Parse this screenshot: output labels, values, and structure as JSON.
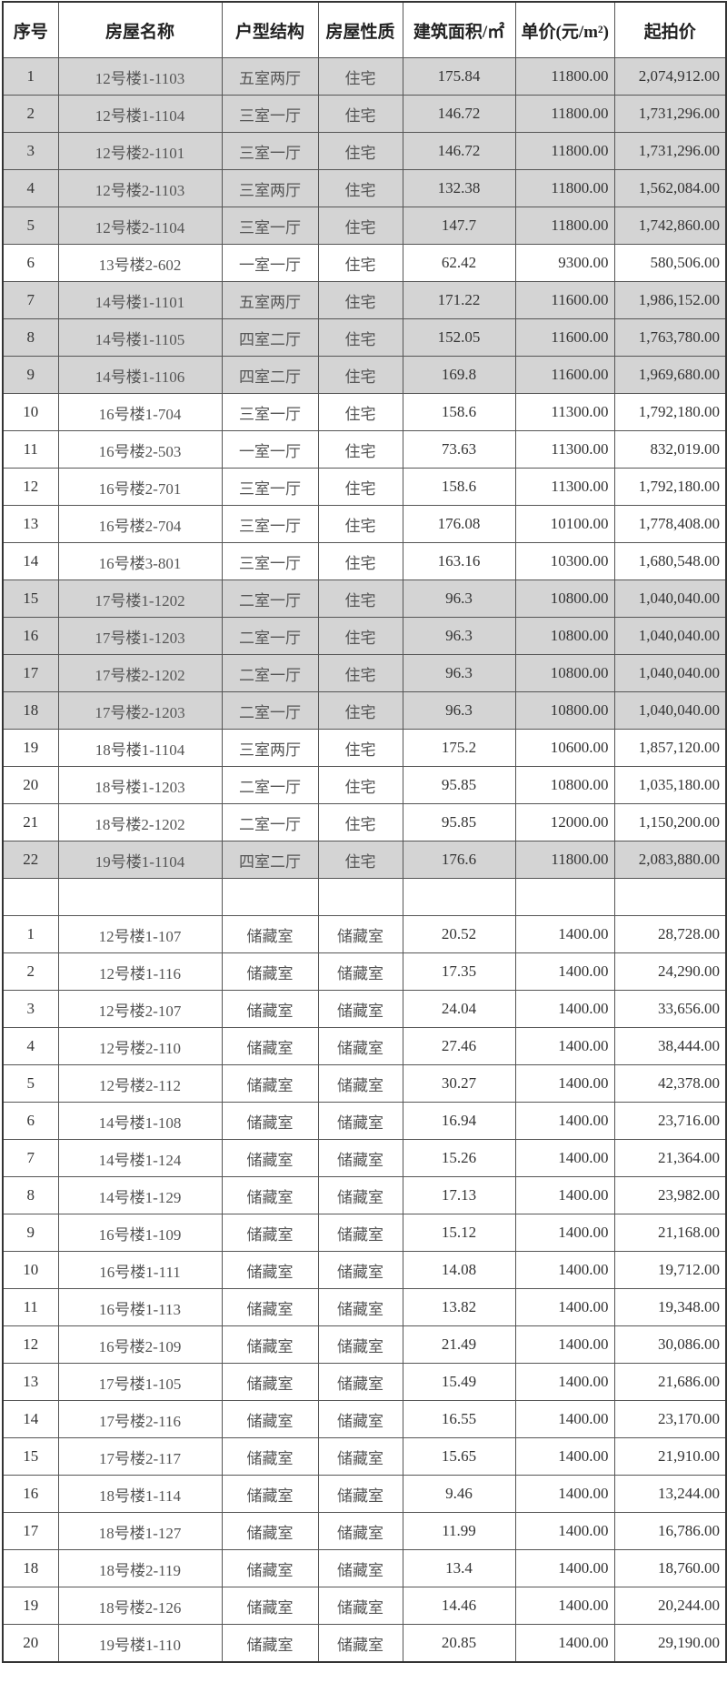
{
  "header": [
    "序号",
    "房屋名称",
    "户型结构",
    "房屋性质",
    "建筑面积/㎡",
    "单价(元/m²)",
    "起拍价"
  ],
  "colors": {
    "highlight_row": "#d4d4d4",
    "border": "#555555"
  },
  "residential": [
    {
      "no": "1",
      "name": "12号楼1-1103",
      "layout": "五室两厅",
      "nature": "住宅",
      "area": "175.84",
      "unit_price": "11800.00",
      "start_price": "2,074,912.00",
      "highlighted": true
    },
    {
      "no": "2",
      "name": "12号楼1-1104",
      "layout": "三室一厅",
      "nature": "住宅",
      "area": "146.72",
      "unit_price": "11800.00",
      "start_price": "1,731,296.00",
      "highlighted": true
    },
    {
      "no": "3",
      "name": "12号楼2-1101",
      "layout": "三室一厅",
      "nature": "住宅",
      "area": "146.72",
      "unit_price": "11800.00",
      "start_price": "1,731,296.00",
      "highlighted": true
    },
    {
      "no": "4",
      "name": "12号楼2-1103",
      "layout": "三室两厅",
      "nature": "住宅",
      "area": "132.38",
      "unit_price": "11800.00",
      "start_price": "1,562,084.00",
      "highlighted": true
    },
    {
      "no": "5",
      "name": "12号楼2-1104",
      "layout": "三室一厅",
      "nature": "住宅",
      "area": "147.7",
      "unit_price": "11800.00",
      "start_price": "1,742,860.00",
      "highlighted": true
    },
    {
      "no": "6",
      "name": "13号楼2-602",
      "layout": "一室一厅",
      "nature": "住宅",
      "area": "62.42",
      "unit_price": "9300.00",
      "start_price": "580,506.00",
      "highlighted": false
    },
    {
      "no": "7",
      "name": "14号楼1-1101",
      "layout": "五室两厅",
      "nature": "住宅",
      "area": "171.22",
      "unit_price": "11600.00",
      "start_price": "1,986,152.00",
      "highlighted": true
    },
    {
      "no": "8",
      "name": "14号楼1-1105",
      "layout": "四室二厅",
      "nature": "住宅",
      "area": "152.05",
      "unit_price": "11600.00",
      "start_price": "1,763,780.00",
      "highlighted": true
    },
    {
      "no": "9",
      "name": "14号楼1-1106",
      "layout": "四室二厅",
      "nature": "住宅",
      "area": "169.8",
      "unit_price": "11600.00",
      "start_price": "1,969,680.00",
      "highlighted": true
    },
    {
      "no": "10",
      "name": "16号楼1-704",
      "layout": "三室一厅",
      "nature": "住宅",
      "area": "158.6",
      "unit_price": "11300.00",
      "start_price": "1,792,180.00",
      "highlighted": false
    },
    {
      "no": "11",
      "name": "16号楼2-503",
      "layout": "一室一厅",
      "nature": "住宅",
      "area": "73.63",
      "unit_price": "11300.00",
      "start_price": "832,019.00",
      "highlighted": false
    },
    {
      "no": "12",
      "name": "16号楼2-701",
      "layout": "三室一厅",
      "nature": "住宅",
      "area": "158.6",
      "unit_price": "11300.00",
      "start_price": "1,792,180.00",
      "highlighted": false
    },
    {
      "no": "13",
      "name": "16号楼2-704",
      "layout": "三室一厅",
      "nature": "住宅",
      "area": "176.08",
      "unit_price": "10100.00",
      "start_price": "1,778,408.00",
      "highlighted": false
    },
    {
      "no": "14",
      "name": "16号楼3-801",
      "layout": "三室一厅",
      "nature": "住宅",
      "area": "163.16",
      "unit_price": "10300.00",
      "start_price": "1,680,548.00",
      "highlighted": false
    },
    {
      "no": "15",
      "name": "17号楼1-1202",
      "layout": "二室一厅",
      "nature": "住宅",
      "area": "96.3",
      "unit_price": "10800.00",
      "start_price": "1,040,040.00",
      "highlighted": true
    },
    {
      "no": "16",
      "name": "17号楼1-1203",
      "layout": "二室一厅",
      "nature": "住宅",
      "area": "96.3",
      "unit_price": "10800.00",
      "start_price": "1,040,040.00",
      "highlighted": true
    },
    {
      "no": "17",
      "name": "17号楼2-1202",
      "layout": "二室一厅",
      "nature": "住宅",
      "area": "96.3",
      "unit_price": "10800.00",
      "start_price": "1,040,040.00",
      "highlighted": true
    },
    {
      "no": "18",
      "name": "17号楼2-1203",
      "layout": "二室一厅",
      "nature": "住宅",
      "area": "96.3",
      "unit_price": "10800.00",
      "start_price": "1,040,040.00",
      "highlighted": true
    },
    {
      "no": "19",
      "name": "18号楼1-1104",
      "layout": "三室两厅",
      "nature": "住宅",
      "area": "175.2",
      "unit_price": "10600.00",
      "start_price": "1,857,120.00",
      "highlighted": false
    },
    {
      "no": "20",
      "name": "18号楼1-1203",
      "layout": "二室一厅",
      "nature": "住宅",
      "area": "95.85",
      "unit_price": "10800.00",
      "start_price": "1,035,180.00",
      "highlighted": false
    },
    {
      "no": "21",
      "name": "18号楼2-1202",
      "layout": "二室一厅",
      "nature": "住宅",
      "area": "95.85",
      "unit_price": "12000.00",
      "start_price": "1,150,200.00",
      "highlighted": false
    },
    {
      "no": "22",
      "name": "19号楼1-1104",
      "layout": "四室二厅",
      "nature": "住宅",
      "area": "176.6",
      "unit_price": "11800.00",
      "start_price": "2,083,880.00",
      "highlighted": true
    }
  ],
  "storage": [
    {
      "no": "1",
      "name": "12号楼1-107",
      "layout": "储藏室",
      "nature": "储藏室",
      "area": "20.52",
      "unit_price": "1400.00",
      "start_price": "28,728.00"
    },
    {
      "no": "2",
      "name": "12号楼1-116",
      "layout": "储藏室",
      "nature": "储藏室",
      "area": "17.35",
      "unit_price": "1400.00",
      "start_price": "24,290.00"
    },
    {
      "no": "3",
      "name": "12号楼2-107",
      "layout": "储藏室",
      "nature": "储藏室",
      "area": "24.04",
      "unit_price": "1400.00",
      "start_price": "33,656.00"
    },
    {
      "no": "4",
      "name": "12号楼2-110",
      "layout": "储藏室",
      "nature": "储藏室",
      "area": "27.46",
      "unit_price": "1400.00",
      "start_price": "38,444.00"
    },
    {
      "no": "5",
      "name": "12号楼2-112",
      "layout": "储藏室",
      "nature": "储藏室",
      "area": "30.27",
      "unit_price": "1400.00",
      "start_price": "42,378.00"
    },
    {
      "no": "6",
      "name": "14号楼1-108",
      "layout": "储藏室",
      "nature": "储藏室",
      "area": "16.94",
      "unit_price": "1400.00",
      "start_price": "23,716.00"
    },
    {
      "no": "7",
      "name": "14号楼1-124",
      "layout": "储藏室",
      "nature": "储藏室",
      "area": "15.26",
      "unit_price": "1400.00",
      "start_price": "21,364.00"
    },
    {
      "no": "8",
      "name": "14号楼1-129",
      "layout": "储藏室",
      "nature": "储藏室",
      "area": "17.13",
      "unit_price": "1400.00",
      "start_price": "23,982.00"
    },
    {
      "no": "9",
      "name": "16号楼1-109",
      "layout": "储藏室",
      "nature": "储藏室",
      "area": "15.12",
      "unit_price": "1400.00",
      "start_price": "21,168.00"
    },
    {
      "no": "10",
      "name": "16号楼1-111",
      "layout": "储藏室",
      "nature": "储藏室",
      "area": "14.08",
      "unit_price": "1400.00",
      "start_price": "19,712.00"
    },
    {
      "no": "11",
      "name": "16号楼1-113",
      "layout": "储藏室",
      "nature": "储藏室",
      "area": "13.82",
      "unit_price": "1400.00",
      "start_price": "19,348.00"
    },
    {
      "no": "12",
      "name": "16号楼2-109",
      "layout": "储藏室",
      "nature": "储藏室",
      "area": "21.49",
      "unit_price": "1400.00",
      "start_price": "30,086.00"
    },
    {
      "no": "13",
      "name": "17号楼1-105",
      "layout": "储藏室",
      "nature": "储藏室",
      "area": "15.49",
      "unit_price": "1400.00",
      "start_price": "21,686.00"
    },
    {
      "no": "14",
      "name": "17号楼2-116",
      "layout": "储藏室",
      "nature": "储藏室",
      "area": "16.55",
      "unit_price": "1400.00",
      "start_price": "23,170.00"
    },
    {
      "no": "15",
      "name": "17号楼2-117",
      "layout": "储藏室",
      "nature": "储藏室",
      "area": "15.65",
      "unit_price": "1400.00",
      "start_price": "21,910.00"
    },
    {
      "no": "16",
      "name": "18号楼1-114",
      "layout": "储藏室",
      "nature": "储藏室",
      "area": "9.46",
      "unit_price": "1400.00",
      "start_price": "13,244.00"
    },
    {
      "no": "17",
      "name": "18号楼1-127",
      "layout": "储藏室",
      "nature": "储藏室",
      "area": "11.99",
      "unit_price": "1400.00",
      "start_price": "16,786.00"
    },
    {
      "no": "18",
      "name": "18号楼2-119",
      "layout": "储藏室",
      "nature": "储藏室",
      "area": "13.4",
      "unit_price": "1400.00",
      "start_price": "18,760.00"
    },
    {
      "no": "19",
      "name": "18号楼2-126",
      "layout": "储藏室",
      "nature": "储藏室",
      "area": "14.46",
      "unit_price": "1400.00",
      "start_price": "20,244.00"
    },
    {
      "no": "20",
      "name": "19号楼1-110",
      "layout": "储藏室",
      "nature": "储藏室",
      "area": "20.85",
      "unit_price": "1400.00",
      "start_price": "29,190.00"
    }
  ]
}
